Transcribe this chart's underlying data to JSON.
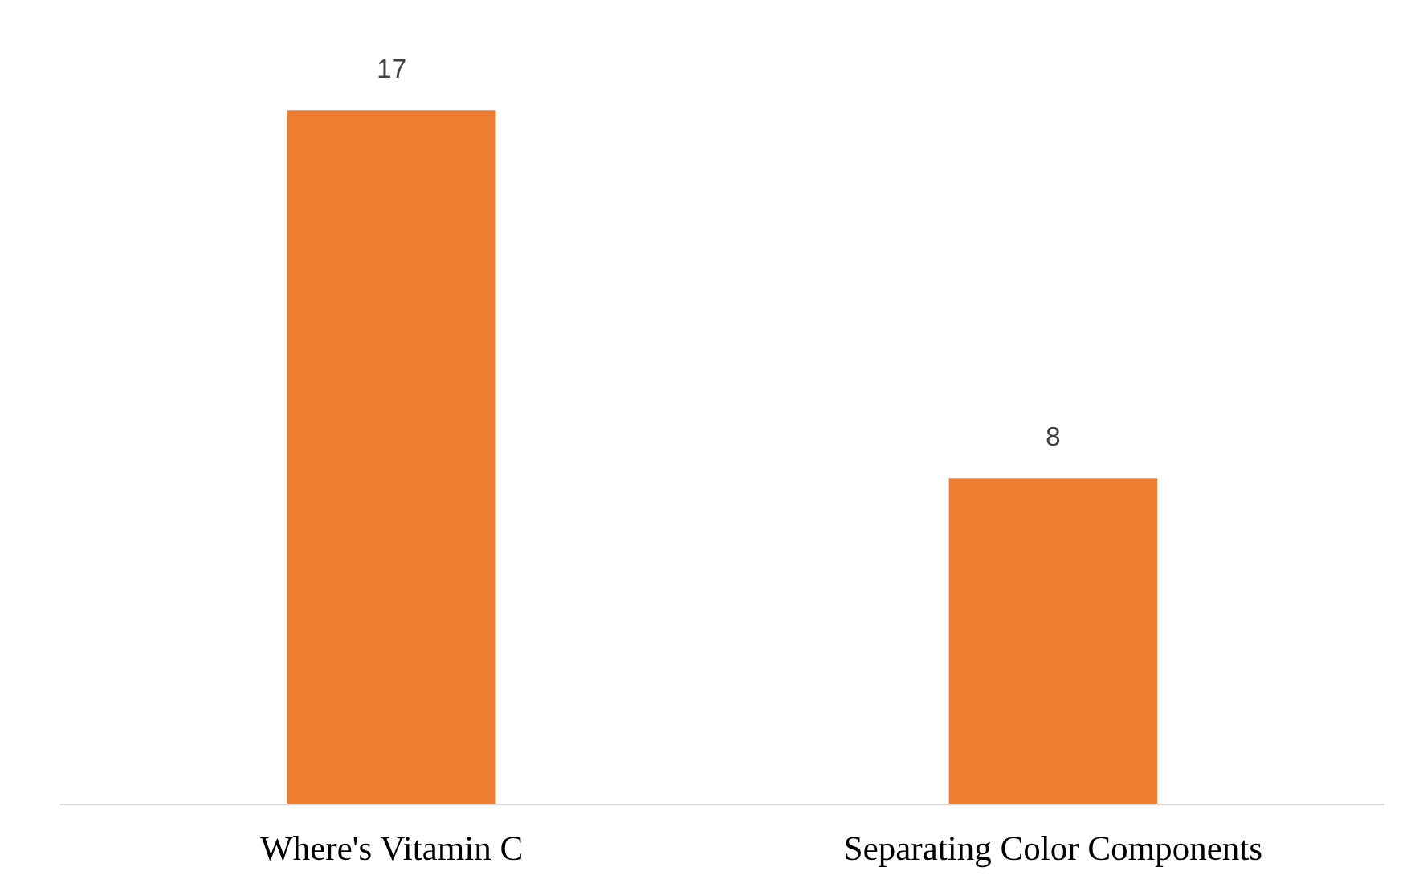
{
  "chart_data": {
    "type": "bar",
    "categories": [
      "Where's Vitamin C",
      "Separating Color Components"
    ],
    "values": [
      17,
      8
    ],
    "color": "#ed7d31",
    "data_labels": true,
    "grid": false
  }
}
